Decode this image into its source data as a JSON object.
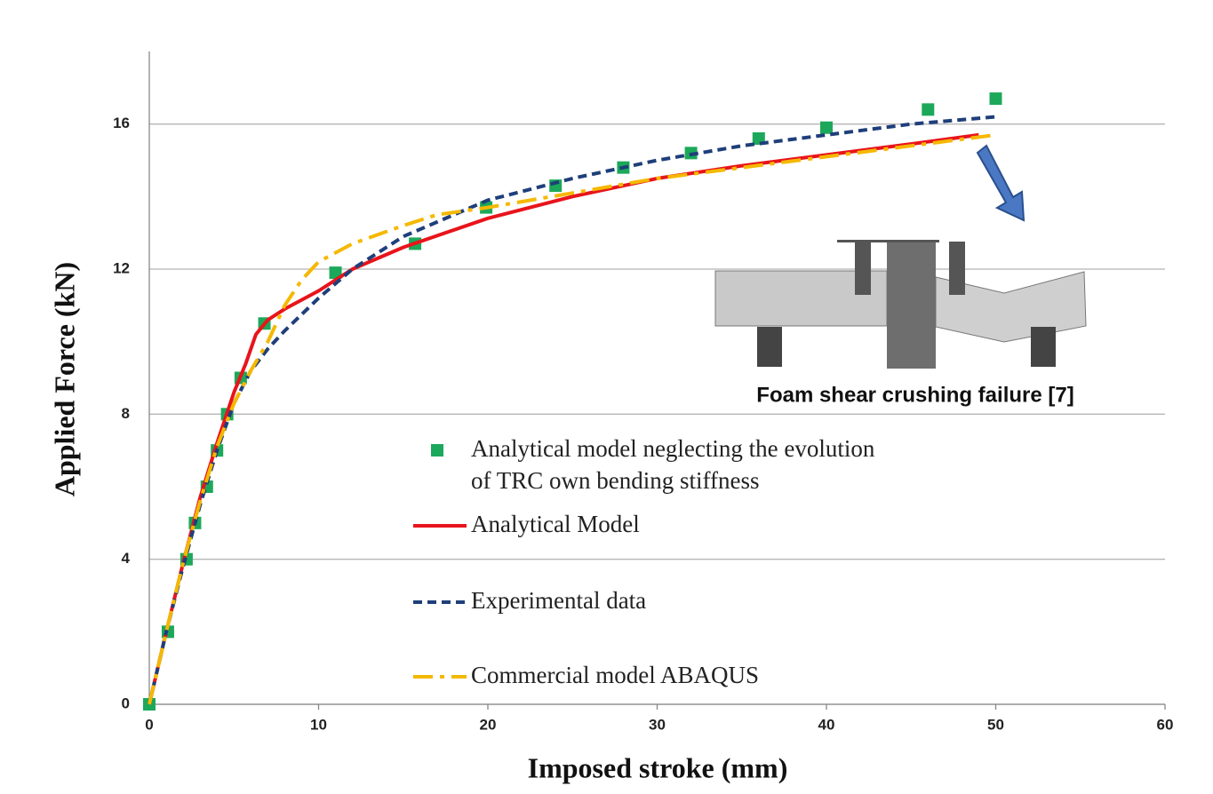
{
  "chart_data": {
    "type": "line",
    "x_label": "Imposed stroke (mm)",
    "y_label": "Applied Force (kN)",
    "annotation": "Foam shear crushing failure [7]",
    "xlim": [
      0,
      60
    ],
    "ylim": [
      0,
      18
    ],
    "xticks": [
      0,
      10,
      20,
      30,
      40,
      50,
      60
    ],
    "yticks": [
      0,
      4,
      8,
      12,
      16
    ],
    "grid": true,
    "series": [
      {
        "name": "Analytical model neglecting the evolution\nof TRC own bending stiffness",
        "color": "#1ca85a",
        "style": "markers",
        "x": [
          0,
          1.1,
          2.2,
          2.7,
          3.4,
          4.0,
          4.6,
          5.4,
          6.8,
          11.0,
          15.7,
          19.9,
          24.0,
          28.0,
          32.0,
          36.0,
          40.0,
          46.0,
          50.0
        ],
        "values": [
          0,
          2,
          4,
          5,
          6,
          7,
          8,
          9,
          10.5,
          11.9,
          12.7,
          13.7,
          14.3,
          14.8,
          15.2,
          15.6,
          15.9,
          16.4,
          16.7
        ]
      },
      {
        "name": "Analytical Model",
        "color": "#e8141b",
        "style": "solid",
        "x": [
          0,
          1,
          2,
          3,
          4,
          5,
          5.7,
          6.3,
          7,
          8,
          10,
          12,
          15,
          20,
          25,
          30,
          35,
          40,
          45,
          49
        ],
        "values": [
          0,
          2,
          3.9,
          5.7,
          7.2,
          8.6,
          9.4,
          10.2,
          10.6,
          10.9,
          11.4,
          12.0,
          12.6,
          13.4,
          14.0,
          14.5,
          14.85,
          15.15,
          15.45,
          15.7
        ]
      },
      {
        "name": "Experimental data",
        "color": "#1f3f7a",
        "style": "dashed",
        "x": [
          0,
          1,
          2,
          3,
          4,
          5,
          6,
          7,
          8,
          10,
          12,
          15,
          20,
          25,
          30,
          35,
          40,
          45,
          50
        ],
        "values": [
          0,
          2,
          3.8,
          5.5,
          7.0,
          8.3,
          9.2,
          9.8,
          10.3,
          11.2,
          12.0,
          12.9,
          13.9,
          14.5,
          15.0,
          15.4,
          15.7,
          16.0,
          16.2
        ]
      },
      {
        "name": "Commercial model ABAQUS",
        "color": "#f5b800",
        "style": "dashdot",
        "x": [
          0,
          1,
          2,
          3,
          4,
          5,
          6,
          7,
          8,
          9,
          10,
          12,
          15,
          17,
          20,
          25,
          30,
          35,
          40,
          45,
          50
        ],
        "values": [
          0,
          2,
          3.9,
          5.6,
          7.1,
          8.3,
          9.2,
          10.0,
          11.0,
          11.7,
          12.2,
          12.7,
          13.2,
          13.5,
          13.7,
          14.1,
          14.5,
          14.8,
          15.1,
          15.4,
          15.7
        ]
      }
    ]
  }
}
